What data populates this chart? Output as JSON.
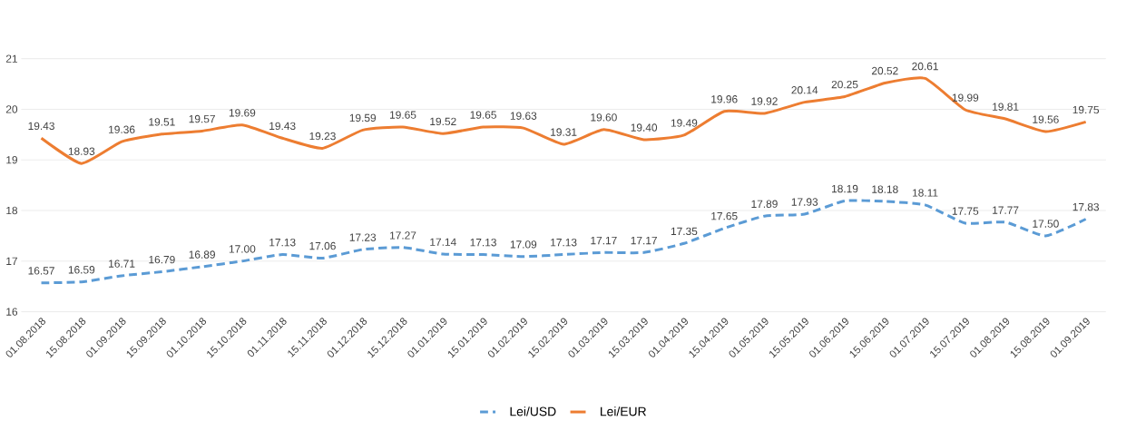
{
  "chart_data": {
    "type": "line",
    "categories": [
      "01.08.2018",
      "15.08.2018",
      "01.09.2018",
      "15.09.2018",
      "01.10.2018",
      "15.10.2018",
      "01.11.2018",
      "15.11.2018",
      "01.12.2018",
      "15.12.2018",
      "01.01.2019",
      "15.01.2019",
      "01.02.2019",
      "15.02.2019",
      "01.03.2019",
      "15.03.2019",
      "01.04.2019",
      "15.04.2019",
      "01.05.2019",
      "15.05.2019",
      "01.06.2019",
      "15.06.2019",
      "01.07.2019",
      "15.07.2019",
      "01.08.2019",
      "15.08.2019",
      "01.09.2019"
    ],
    "series": [
      {
        "name": "Lei/USD",
        "color": "#5b9bd5",
        "line_style": "dashed",
        "values": [
          16.57,
          16.59,
          16.71,
          16.79,
          16.89,
          17.0,
          17.13,
          17.06,
          17.23,
          17.27,
          17.14,
          17.13,
          17.09,
          17.13,
          17.17,
          17.17,
          17.35,
          17.65,
          17.89,
          17.93,
          18.19,
          18.18,
          18.11,
          17.75,
          17.77,
          17.5,
          17.83
        ],
        "value_labels": [
          "16.57",
          "16.59",
          "16.71",
          "16.79",
          "16.89",
          "17.00",
          "17.13",
          "17.06",
          "17.23",
          "17.27",
          "17.14",
          "17.13",
          "17.09",
          "17.13",
          "17.17",
          "17.17",
          "17.35",
          "17.65",
          "17.89",
          "17.93",
          "18.19",
          "18.18",
          "18.11",
          "17.75",
          "17.77",
          "17.50",
          "17.83"
        ]
      },
      {
        "name": "Lei/EUR",
        "color": "#ed7d31",
        "line_style": "solid",
        "values": [
          19.43,
          18.93,
          19.36,
          19.51,
          19.57,
          19.69,
          19.43,
          19.23,
          19.59,
          19.65,
          19.52,
          19.65,
          19.63,
          19.31,
          19.6,
          19.4,
          19.49,
          19.96,
          19.92,
          20.14,
          20.25,
          20.52,
          20.61,
          19.99,
          19.81,
          19.56,
          19.75
        ],
        "value_labels": [
          "19.43",
          "18.93",
          "19.36",
          "19.51",
          "19.57",
          "19.69",
          "19.43",
          "19.23",
          "19.59",
          "19.65",
          "19.52",
          "19.65",
          "19.63",
          "19.31",
          "19.60",
          "19.40",
          "19.49",
          "19.96",
          "19.92",
          "20.14",
          "20.25",
          "20.52",
          "20.61",
          "19.99",
          "19.81",
          "19.56",
          "19.75"
        ]
      }
    ],
    "ylim": [
      16,
      21
    ],
    "yticks": [
      16,
      17,
      18,
      19,
      20,
      21
    ],
    "grid": "y",
    "legend": "bottom",
    "marker": "none"
  }
}
